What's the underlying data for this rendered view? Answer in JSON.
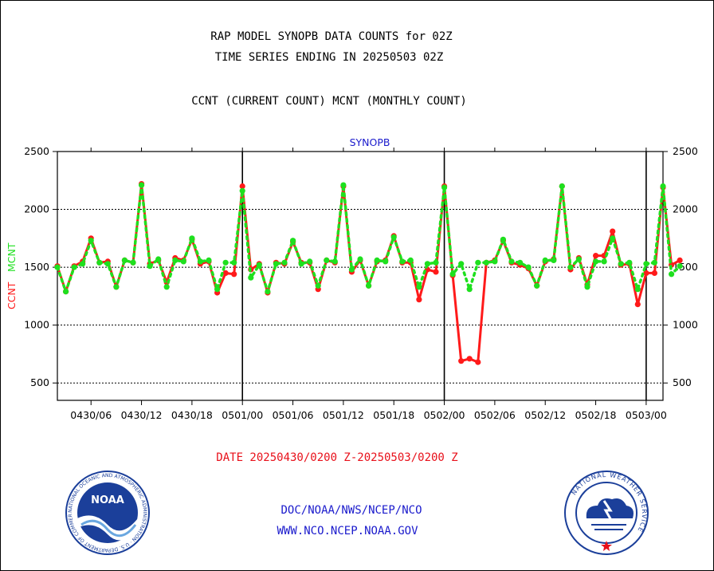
{
  "header": {
    "title_line1": "RAP MODEL SYNOPB DATA COUNTS for 02Z",
    "title_line2": "TIME SERIES ENDING IN 20250503 02Z",
    "subtitle": "CCNT (CURRENT COUNT) MCNT (MONTHLY COUNT)"
  },
  "footer": {
    "date_range": "DATE 20250430/0200 Z-20250503/0200 Z",
    "org_path": "DOC/NOAA/NWS/NCEP/NCO",
    "website": "WWW.NCO.NCEP.NOAA.GOV"
  },
  "logos": {
    "noaa": {
      "text": "NOAA",
      "ring_text": "NATIONAL OCEANIC AND ATMOSPHERIC ADMINISTRATION · U.S. DEPARTMENT OF COMMERCE",
      "color": "#1b3f9a"
    },
    "nws": {
      "ring_text": "NATIONAL WEATHER SERVICE",
      "color": "#1b3f9a"
    }
  },
  "chart_data": {
    "type": "line",
    "title": "SYNOPB",
    "ylabel_left_ccnt": "CCNT",
    "ylabel_left_mcnt": "MCNT",
    "ylim": [
      350,
      2500
    ],
    "yticks": [
      500,
      1000,
      1500,
      2000,
      2500
    ],
    "xticks": [
      "0430/06",
      "0430/12",
      "0430/18",
      "0501/00",
      "0501/06",
      "0501/12",
      "0501/18",
      "0502/00",
      "0502/06",
      "0502/12",
      "0502/18",
      "0503/00"
    ],
    "x_start_hour": 2,
    "x_end_hour": 74,
    "grid": true,
    "day_dividers": [
      "0501/00",
      "0502/00",
      "0503/00"
    ],
    "colors": {
      "ccnt": "#ff1a1a",
      "mcnt": "#1ee01e",
      "axes": "#000000",
      "title": "#1a1acc"
    },
    "series": [
      {
        "name": "CCNT",
        "style": "solid",
        "values": [
          1510,
          1290,
          1510,
          1550,
          1750,
          1540,
          1550,
          1330,
          1560,
          1540,
          2220,
          1530,
          1560,
          1370,
          1580,
          1560,
          1740,
          1530,
          1550,
          1280,
          1450,
          1440,
          2200,
          1480,
          1530,
          1280,
          1540,
          1530,
          1720,
          1540,
          1540,
          1310,
          1560,
          1540,
          2200,
          1460,
          1560,
          1340,
          1550,
          1560,
          1770,
          1540,
          1540,
          1220,
          1480,
          1460,
          2200,
          1430,
          690,
          710,
          680,
          1540,
          1560,
          1730,
          1540,
          1520,
          1490,
          1340,
          1550,
          1570,
          2200,
          1480,
          1580,
          1350,
          1600,
          1600,
          1810,
          1520,
          1530,
          1180,
          1450,
          1450,
          2190,
          1520,
          1560
        ]
      },
      {
        "name": "MCNT",
        "style": "dotted",
        "values": [
          1500,
          1290,
          1500,
          1530,
          1730,
          1540,
          1530,
          1330,
          1560,
          1540,
          2210,
          1510,
          1570,
          1330,
          1560,
          1550,
          1750,
          1550,
          1560,
          1310,
          1540,
          1540,
          2160,
          1410,
          1520,
          1290,
          1530,
          1540,
          1730,
          1530,
          1550,
          1340,
          1560,
          1550,
          2210,
          1480,
          1570,
          1340,
          1560,
          1550,
          1760,
          1550,
          1560,
          1330,
          1530,
          1540,
          2190,
          1440,
          1530,
          1310,
          1540,
          1540,
          1550,
          1740,
          1550,
          1540,
          1500,
          1340,
          1560,
          1560,
          2200,
          1500,
          1570,
          1330,
          1550,
          1550,
          1750,
          1530,
          1540,
          1310,
          1530,
          1540,
          2200,
          1440,
          1510
        ]
      }
    ]
  }
}
